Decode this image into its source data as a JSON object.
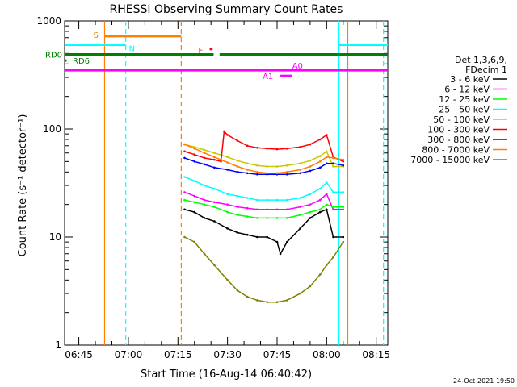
{
  "chart_data": {
    "type": "line",
    "title": "RHESSI Observing Summary Count Rates",
    "xlabel": "Start Time (16-Aug-14 06:40:42)",
    "ylabel": "Count Rate (s⁻¹ detector⁻¹)",
    "yscale": "log",
    "ylim": [
      1,
      1000
    ],
    "xlim_minutes_after_0640": [
      0.7,
      98.5
    ],
    "x_tick_labels": [
      "06:45",
      "07:00",
      "07:15",
      "07:30",
      "07:45",
      "08:00",
      "08:15"
    ],
    "x_tick_minutes": [
      5,
      20,
      35,
      50,
      65,
      80,
      95
    ],
    "y_tick_labels": [
      "1",
      "10",
      "100",
      "1000"
    ],
    "y_tick_values": [
      1,
      10,
      100,
      1000
    ],
    "legend_header": [
      "Det 1,3,6,9,",
      "FDecim 1"
    ],
    "series": [
      {
        "name": "3 - 6 keV",
        "color": "#000000",
        "x": [
          37,
          40,
          43,
          46,
          50,
          53,
          56,
          59,
          62,
          65,
          66,
          68,
          72,
          75,
          78,
          80,
          82,
          85
        ],
        "y": [
          18,
          17,
          15,
          14,
          12,
          11,
          10.5,
          10,
          10,
          9,
          7,
          9,
          12,
          15,
          17,
          18,
          10,
          10
        ]
      },
      {
        "name": "6 - 12 keV",
        "color": "#ff00ff",
        "x": [
          37,
          40,
          43,
          46,
          50,
          53,
          56,
          59,
          62,
          65,
          68,
          72,
          75,
          78,
          80,
          82,
          85
        ],
        "y": [
          26,
          24,
          22,
          21,
          20,
          19,
          18.5,
          18,
          18,
          18,
          18,
          19,
          20,
          22,
          25,
          18,
          18
        ]
      },
      {
        "name": "12 - 25 keV",
        "color": "#00ff00",
        "x": [
          37,
          40,
          43,
          46,
          50,
          53,
          56,
          59,
          62,
          65,
          68,
          72,
          75,
          78,
          80,
          82,
          85
        ],
        "y": [
          22,
          21,
          20,
          19,
          17,
          16,
          15.5,
          15,
          15,
          15,
          15,
          16,
          17,
          18,
          20,
          19,
          19
        ]
      },
      {
        "name": "25 - 50 keV",
        "color": "#00ffff",
        "x": [
          37,
          40,
          43,
          46,
          50,
          53,
          56,
          59,
          62,
          65,
          68,
          72,
          75,
          78,
          80,
          82,
          85
        ],
        "y": [
          36,
          33,
          30,
          28,
          25,
          24,
          23,
          22,
          22,
          22,
          22,
          23,
          25,
          28,
          32,
          26,
          26
        ]
      },
      {
        "name": "50 - 100 keV",
        "color": "#c8c800",
        "x": [
          37,
          40,
          43,
          46,
          50,
          53,
          56,
          59,
          62,
          65,
          68,
          72,
          75,
          78,
          80,
          82,
          85
        ],
        "y": [
          72,
          68,
          64,
          60,
          55,
          51,
          48,
          46,
          45,
          45,
          46,
          48,
          51,
          56,
          62,
          45,
          45
        ]
      },
      {
        "name": "100 - 300 keV",
        "color": "#ff0000",
        "x": [
          37,
          40,
          43,
          46,
          48,
          49,
          50,
          53,
          56,
          59,
          62,
          65,
          68,
          72,
          75,
          78,
          80,
          82,
          85
        ],
        "y": [
          62,
          58,
          54,
          52,
          50,
          95,
          88,
          78,
          70,
          67,
          66,
          65,
          66,
          68,
          72,
          80,
          88,
          55,
          50
        ]
      },
      {
        "name": "300 - 800 keV",
        "color": "#0000ff",
        "x": [
          37,
          40,
          43,
          46,
          50,
          53,
          56,
          59,
          62,
          65,
          68,
          72,
          75,
          78,
          80,
          82,
          85
        ],
        "y": [
          54,
          50,
          47,
          44,
          42,
          40,
          39,
          38,
          38,
          38,
          38,
          39,
          41,
          44,
          48,
          48,
          46
        ]
      },
      {
        "name": "800 - 7000 keV",
        "color": "#ff8000",
        "x": [
          37,
          40,
          43,
          46,
          50,
          53,
          56,
          59,
          62,
          65,
          68,
          72,
          75,
          78,
          80,
          82,
          85
        ],
        "y": [
          72,
          66,
          60,
          55,
          49,
          45,
          42,
          40,
          39,
          39,
          40,
          42,
          45,
          50,
          55,
          54,
          52
        ]
      },
      {
        "name": "7000 - 15000 keV",
        "color": "#808000",
        "x": [
          37,
          40,
          43,
          46,
          50,
          53,
          56,
          59,
          62,
          65,
          68,
          72,
          75,
          78,
          80,
          82,
          85
        ],
        "y": [
          10,
          9,
          7,
          5.5,
          4,
          3.2,
          2.8,
          2.6,
          2.5,
          2.5,
          2.6,
          3,
          3.5,
          4.5,
          5.5,
          6.5,
          9
        ]
      }
    ],
    "annotations": {
      "S": {
        "color": "#ff8000",
        "x_start": 12.8,
        "x_end": 36.0,
        "y": 720
      },
      "N": {
        "color": "#00ffff",
        "x_start": 0.7,
        "x_end": 19.2,
        "x2_start": 83.7,
        "x2_end": 98.5,
        "y": 600
      },
      "F": {
        "color": "#ff0000",
        "x_start": 44.6,
        "x_end": 45.5,
        "y": 550
      },
      "RD0": {
        "color": "#008000",
        "segments": [
          [
            0.7,
            36.0
          ],
          [
            36.0,
            45.8
          ],
          [
            47.6,
            83.2
          ],
          [
            83.2,
            98.5
          ]
        ],
        "y": 490
      },
      "RD6": {
        "color": "#008000",
        "x_start": 0.7,
        "x_end": 1.3,
        "y": 430
      },
      "A0": {
        "color": "#ff00ff",
        "x_start": 0.7,
        "x_end": 98.5,
        "y": 350
      },
      "A1": {
        "color": "#ff00ff",
        "x_start": 66.0,
        "x_end": 69.5,
        "y": 310
      }
    },
    "vlines": [
      {
        "x": 12.8,
        "color": "#ff8000",
        "style": "solid"
      },
      {
        "x": 19.2,
        "color": "#00ffff",
        "style": "dashed"
      },
      {
        "x": 36.0,
        "color": "#ff8000",
        "style": "dashed"
      },
      {
        "x": 83.7,
        "color": "#00ffff",
        "style": "solid"
      },
      {
        "x": 86.4,
        "color": "#ff8000",
        "style": "solid"
      },
      {
        "x": 97.2,
        "color": "#00ffff",
        "style": "dashed"
      }
    ]
  },
  "footer_timestamp": "24-Oct-2021 19:50"
}
